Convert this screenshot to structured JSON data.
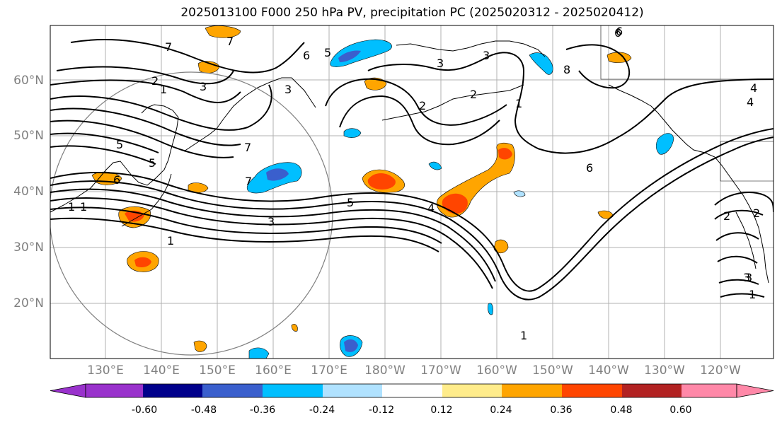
{
  "title": "2025013100 F000 250 hPa PV, precipitation PC (2025020312 - 2025020412)",
  "lat_labels": [
    "60°N",
    "50°N",
    "40°N",
    "30°N",
    "20°N"
  ],
  "lon_labels": [
    "130°E",
    "140°E",
    "150°E",
    "160°E",
    "170°E",
    "180°W",
    "170°W",
    "160°W",
    "150°W",
    "140°W",
    "130°W",
    "120°W"
  ],
  "colorbar": {
    "tick_labels": [
      "-0.60",
      "-0.48",
      "-0.36",
      "-0.24",
      "-0.12",
      "0.12",
      "0.24",
      "0.36",
      "0.48",
      "0.60"
    ],
    "colors": [
      "#9932cc",
      "#00008b",
      "#3a5fcd",
      "#00bfff",
      "#b0e2ff",
      "#ffffff",
      "#ffec8b",
      "#ffa500",
      "#ff4500",
      "#b22222",
      "#ff88a8"
    ]
  },
  "contour_labels": [
    "7",
    "6",
    "5",
    "3",
    "2",
    "1",
    "3",
    "2",
    "3",
    "8",
    "6",
    "7",
    "6",
    "4",
    "2",
    "3",
    "1",
    "2",
    "1",
    "7",
    "5",
    "4",
    "5",
    "7",
    "4",
    "5",
    "1",
    "3",
    "6",
    "1",
    "2",
    "3",
    "1",
    "6",
    "3",
    "1"
  ],
  "map_colors": {
    "grid": "#b0b0b0",
    "circle": "#808080",
    "contour": "#000000",
    "coast": "#000000"
  }
}
